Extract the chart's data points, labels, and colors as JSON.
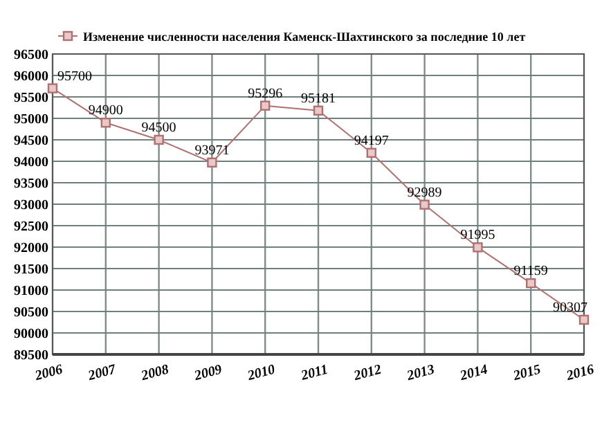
{
  "chart_data": {
    "type": "line",
    "x": [
      2006,
      2007,
      2008,
      2009,
      2010,
      2011,
      2012,
      2013,
      2014,
      2015,
      2016
    ],
    "series": [
      {
        "name": "Изменение численности населения Каменск-Шахтинского за последние 10 лет",
        "color": "#b07070",
        "values": [
          95700,
          94900,
          94500,
          93971,
          95296,
          95181,
          94197,
          92989,
          91995,
          91159,
          90307
        ]
      }
    ],
    "xlim": [
      2006,
      2016
    ],
    "xticks": [
      2006,
      2007,
      2008,
      2009,
      2010,
      2011,
      2012,
      2013,
      2014,
      2015,
      2016
    ],
    "ylim": [
      89500,
      96500
    ],
    "yticks": [
      89500,
      90000,
      90500,
      91000,
      91500,
      92000,
      92500,
      93000,
      93500,
      94000,
      94500,
      95000,
      95500,
      96000,
      96500
    ],
    "grid": true,
    "legend": "top",
    "marker": "square",
    "line_style": "solid",
    "data_labels": true
  }
}
